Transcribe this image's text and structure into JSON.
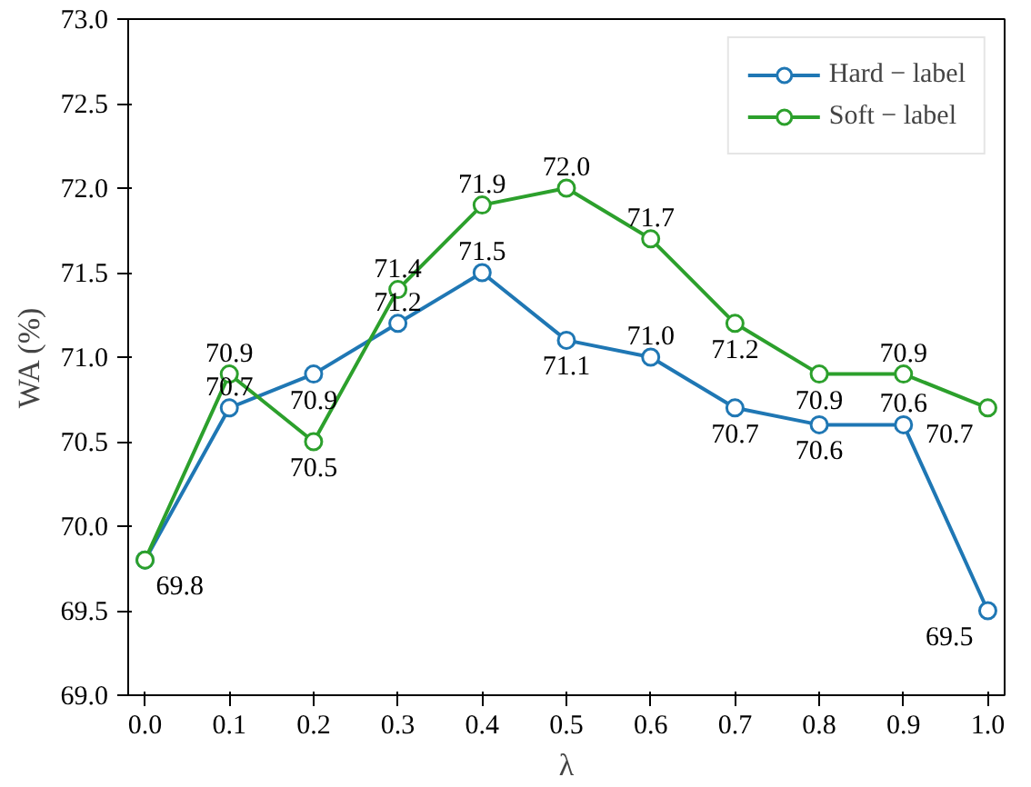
{
  "chart_data": {
    "type": "line",
    "xlabel": "λ",
    "ylabel": "WA (%)",
    "x": [
      0.0,
      0.1,
      0.2,
      0.3,
      0.4,
      0.5,
      0.6,
      0.7,
      0.8,
      0.9,
      1.0
    ],
    "series": [
      {
        "name": "Hard − label",
        "color": "#1f77b4",
        "values": [
          69.8,
          70.7,
          70.9,
          71.2,
          71.5,
          71.1,
          71.0,
          70.7,
          70.6,
          70.6,
          69.5
        ],
        "value_labels": [
          "69.8",
          "70.7",
          "70.9",
          "71.2",
          "71.5",
          "71.1",
          "71.0",
          "70.7",
          "70.6",
          "70.6",
          "69.5"
        ]
      },
      {
        "name": "Soft − label",
        "color": "#2ca02c",
        "values": [
          69.8,
          70.9,
          70.5,
          71.4,
          71.9,
          72.0,
          71.7,
          71.2,
          70.9,
          70.9,
          70.7
        ],
        "value_labels": [
          null,
          "70.9",
          "70.5",
          "71.4",
          "71.9",
          "72.0",
          "71.7",
          "71.2",
          "70.9",
          "70.9",
          "70.7"
        ]
      }
    ],
    "xlim": [
      -0.02,
      1.02
    ],
    "ylim": [
      69.0,
      73.0
    ],
    "xticks": [
      {
        "value": 0.0,
        "label": "0.0"
      },
      {
        "value": 0.1,
        "label": "0.1"
      },
      {
        "value": 0.2,
        "label": "0.2"
      },
      {
        "value": 0.3,
        "label": "0.3"
      },
      {
        "value": 0.4,
        "label": "0.4"
      },
      {
        "value": 0.5,
        "label": "0.5"
      },
      {
        "value": 0.6,
        "label": "0.6"
      },
      {
        "value": 0.7,
        "label": "0.7"
      },
      {
        "value": 0.8,
        "label": "0.8"
      },
      {
        "value": 0.9,
        "label": "0.9"
      },
      {
        "value": 1.0,
        "label": "1.0"
      }
    ],
    "yticks": [
      {
        "value": 69.0,
        "label": "69.0"
      },
      {
        "value": 69.5,
        "label": "69.5"
      },
      {
        "value": 70.0,
        "label": "70.0"
      },
      {
        "value": 70.5,
        "label": "70.5"
      },
      {
        "value": 71.0,
        "label": "71.0"
      },
      {
        "value": 71.5,
        "label": "71.5"
      },
      {
        "value": 72.0,
        "label": "72.0"
      },
      {
        "value": 72.5,
        "label": "72.5"
      },
      {
        "value": 73.0,
        "label": "73.0"
      }
    ],
    "legend": "top right",
    "marker": "circle",
    "line_style": "solid",
    "grid": false
  }
}
